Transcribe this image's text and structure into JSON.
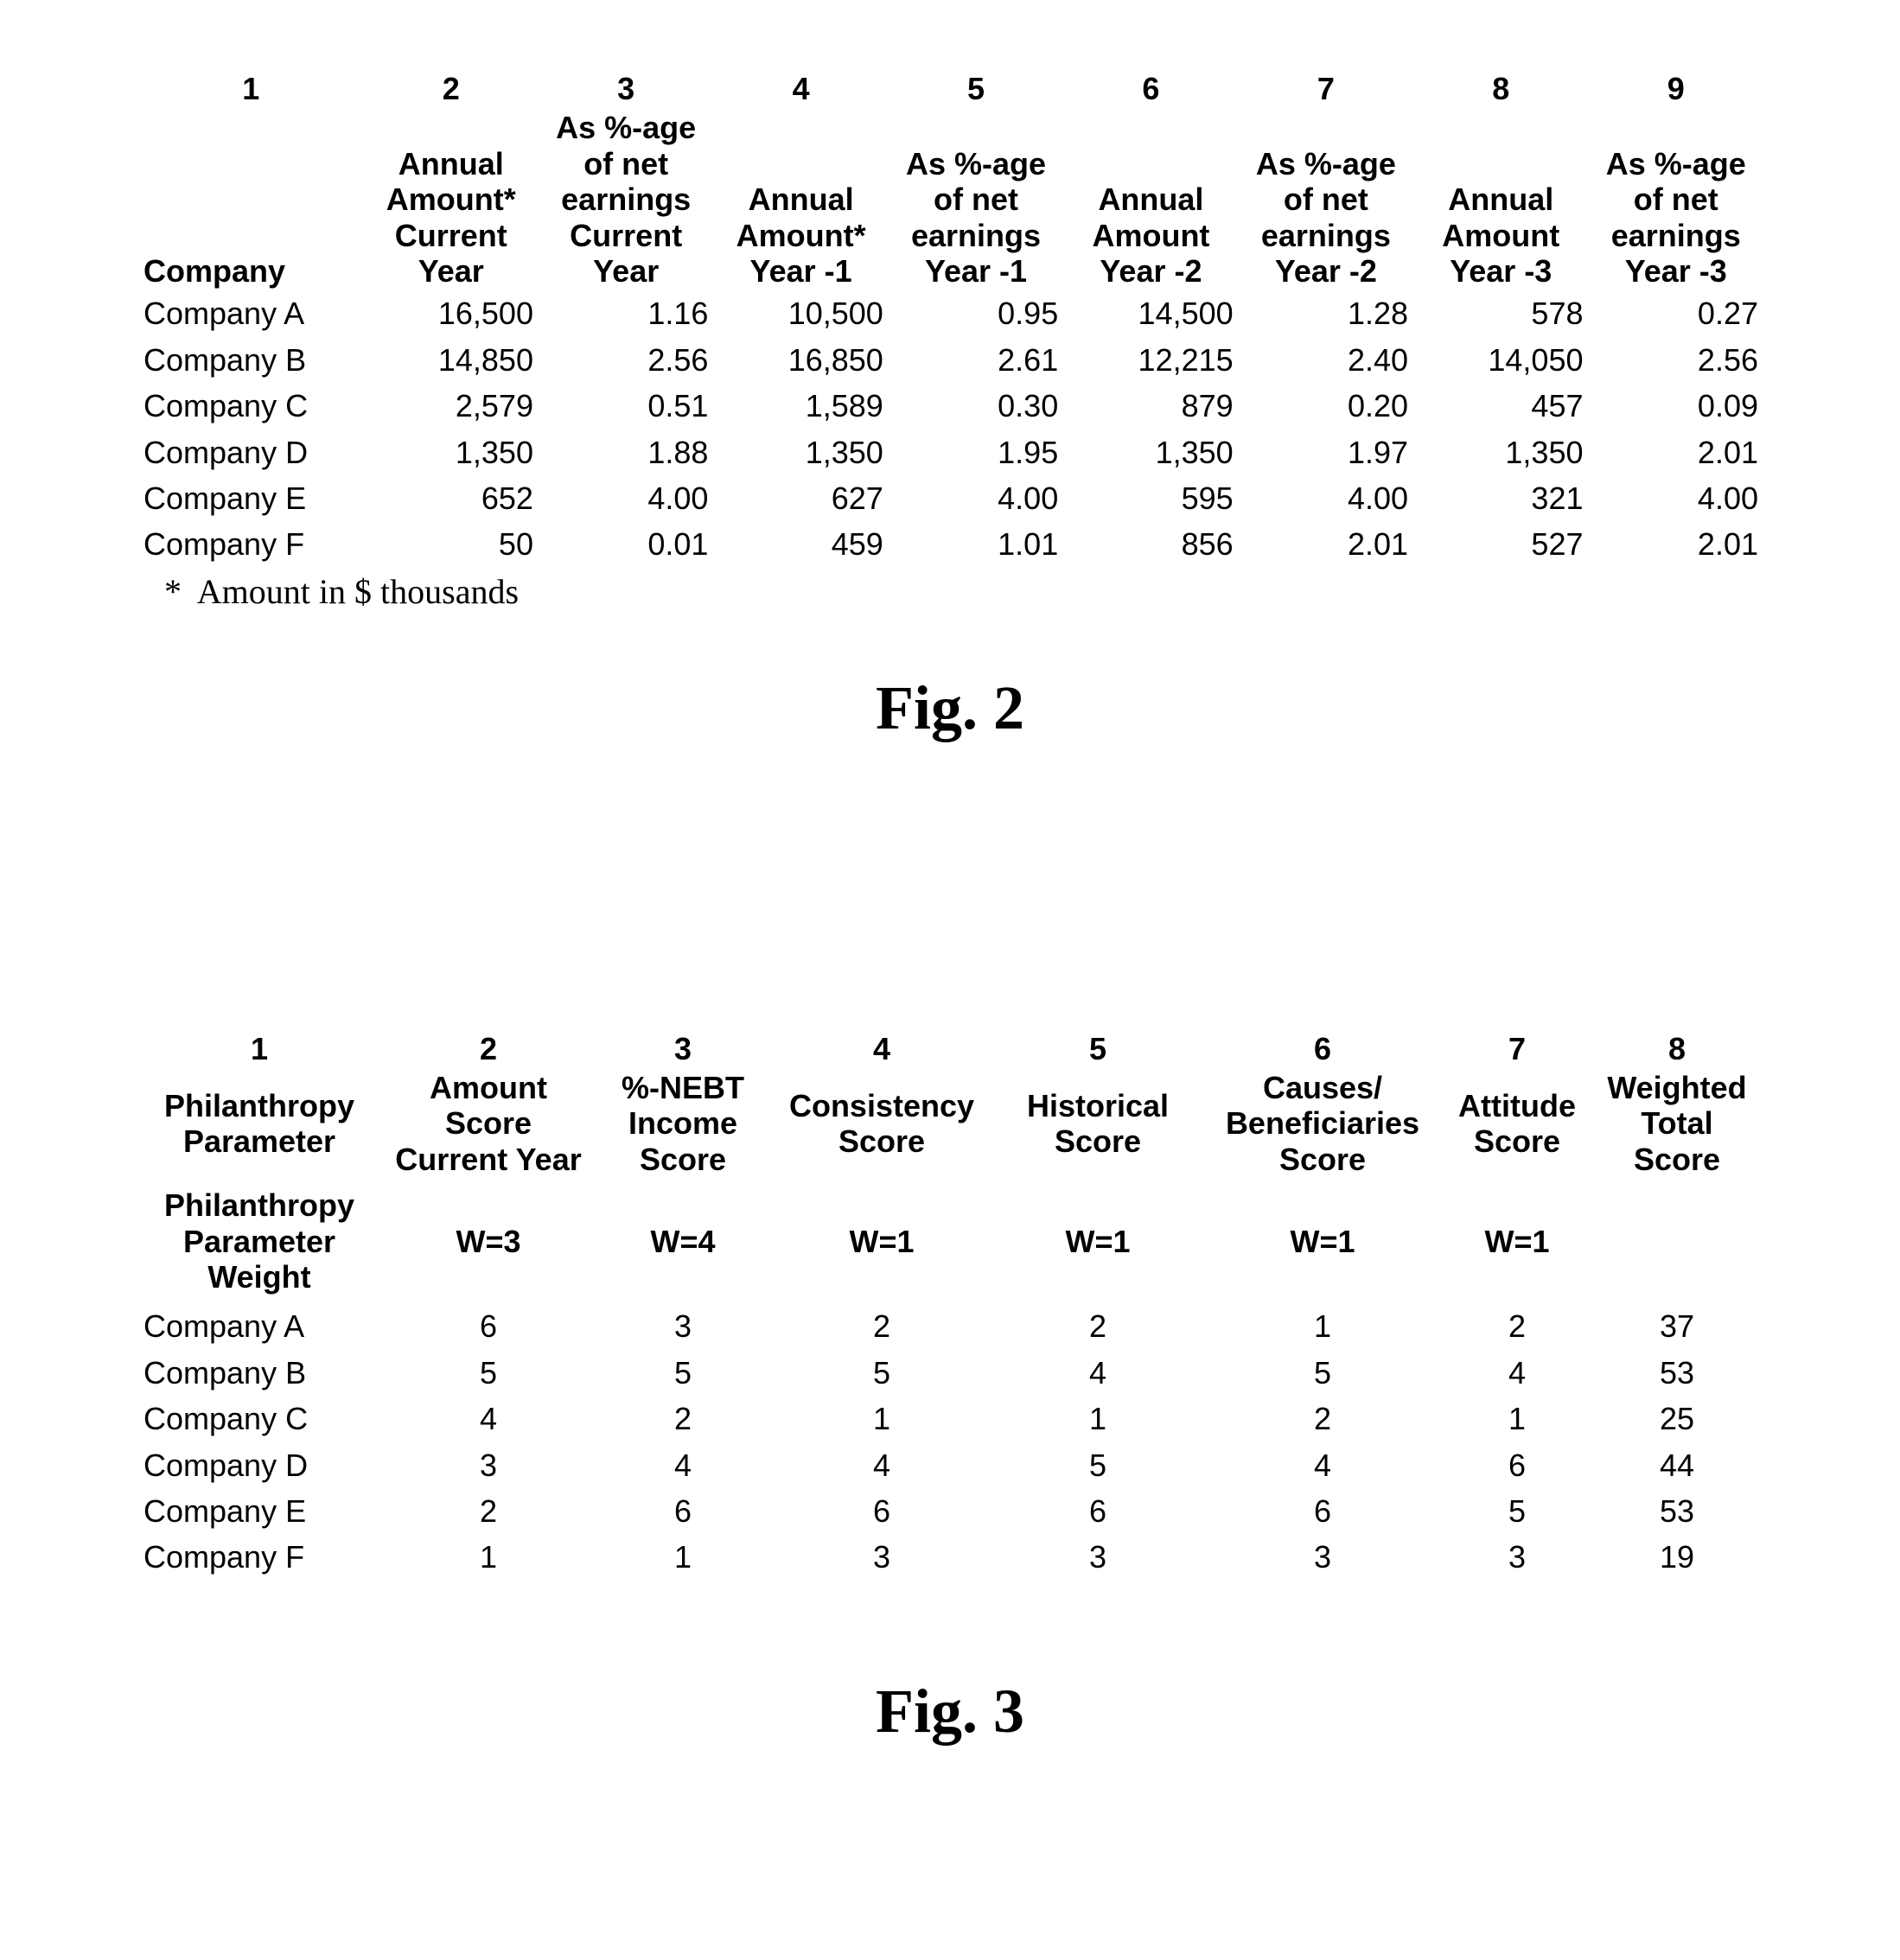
{
  "colors": {
    "background": "#ffffff",
    "text": "#000000"
  },
  "typography": {
    "data_font_family": "Arial, Helvetica, sans-serif",
    "caption_font_family": "\"Times New Roman\", Times, serif",
    "data_font_size_pt": 27,
    "caption_font_size_pt": 54,
    "footnote_font_size_pt": 30,
    "header_weight": "700",
    "data_weight": "400"
  },
  "fig2": {
    "caption": "Fig. 2",
    "footnote": "   *  Amount in $ thousands",
    "col_numbers": [
      "1",
      "2",
      "3",
      "4",
      "5",
      "6",
      "7",
      "8",
      "9"
    ],
    "headers": {
      "c1": "Company",
      "c2": "Annual\nAmount*\nCurrent\nYear",
      "c3": "As %-age\nof net\nearnings\nCurrent\nYear",
      "c4": "Annual\nAmount*\nYear -1",
      "c5": "As %-age\nof net\nearnings\nYear -1",
      "c6": "Annual\nAmount\nYear -2",
      "c7": "As %-age\nof net\nearnings\nYear -2",
      "c8": "Annual\nAmount\nYear -3",
      "c9": "As %-age\nof net\nearnings\nYear -3"
    },
    "column_alignment": [
      "left",
      "right",
      "right",
      "right",
      "right",
      "right",
      "right",
      "right",
      "right"
    ],
    "rows": [
      {
        "company": "Company A",
        "v": [
          "16,500",
          "1.16",
          "10,500",
          "0.95",
          "14,500",
          "1.28",
          "578",
          "0.27"
        ]
      },
      {
        "company": "Company B",
        "v": [
          "14,850",
          "2.56",
          "16,850",
          "2.61",
          "12,215",
          "2.40",
          "14,050",
          "2.56"
        ]
      },
      {
        "company": "Company C",
        "v": [
          "2,579",
          "0.51",
          "1,589",
          "0.30",
          "879",
          "0.20",
          "457",
          "0.09"
        ]
      },
      {
        "company": "Company D",
        "v": [
          "1,350",
          "1.88",
          "1,350",
          "1.95",
          "1,350",
          "1.97",
          "1,350",
          "2.01"
        ]
      },
      {
        "company": "Company E",
        "v": [
          "652",
          "4.00",
          "627",
          "4.00",
          "595",
          "4.00",
          "321",
          "4.00"
        ]
      },
      {
        "company": "Company F",
        "v": [
          "50",
          "0.01",
          "459",
          "1.01",
          "856",
          "2.01",
          "527",
          "2.01"
        ]
      }
    ]
  },
  "fig3": {
    "caption": "Fig. 3",
    "col_numbers": [
      "1",
      "2",
      "3",
      "4",
      "5",
      "6",
      "7",
      "8"
    ],
    "headers": {
      "c1": "Philanthropy\nParameter",
      "c2": "Amount\nScore\nCurrent Year",
      "c3": "%-NEBT\nIncome\nScore",
      "c4": "Consistency\nScore",
      "c5": "Historical\nScore",
      "c6": "Causes/\nBeneficiaries\nScore",
      "c7": "Attitude\nScore",
      "c8": "Weighted\nTotal Score"
    },
    "weight_row_label": "Philanthropy\nParameter\nWeight",
    "weights": [
      "W=3",
      "W=4",
      "W=1",
      "W=1",
      "W=1",
      "W=1",
      ""
    ],
    "column_alignment": [
      "left",
      "center",
      "center",
      "center",
      "center",
      "center",
      "center",
      "center"
    ],
    "rows": [
      {
        "company": "Company A",
        "v": [
          "6",
          "3",
          "2",
          "2",
          "1",
          "2",
          "37"
        ]
      },
      {
        "company": "Company B",
        "v": [
          "5",
          "5",
          "5",
          "4",
          "5",
          "4",
          "53"
        ]
      },
      {
        "company": "Company C",
        "v": [
          "4",
          "2",
          "1",
          "1",
          "2",
          "1",
          "25"
        ]
      },
      {
        "company": "Company D",
        "v": [
          "3",
          "4",
          "4",
          "5",
          "4",
          "6",
          "44"
        ]
      },
      {
        "company": "Company E",
        "v": [
          "2",
          "6",
          "6",
          "6",
          "6",
          "5",
          "53"
        ]
      },
      {
        "company": "Company F",
        "v": [
          "1",
          "1",
          "3",
          "3",
          "3",
          "3",
          "19"
        ]
      }
    ]
  }
}
